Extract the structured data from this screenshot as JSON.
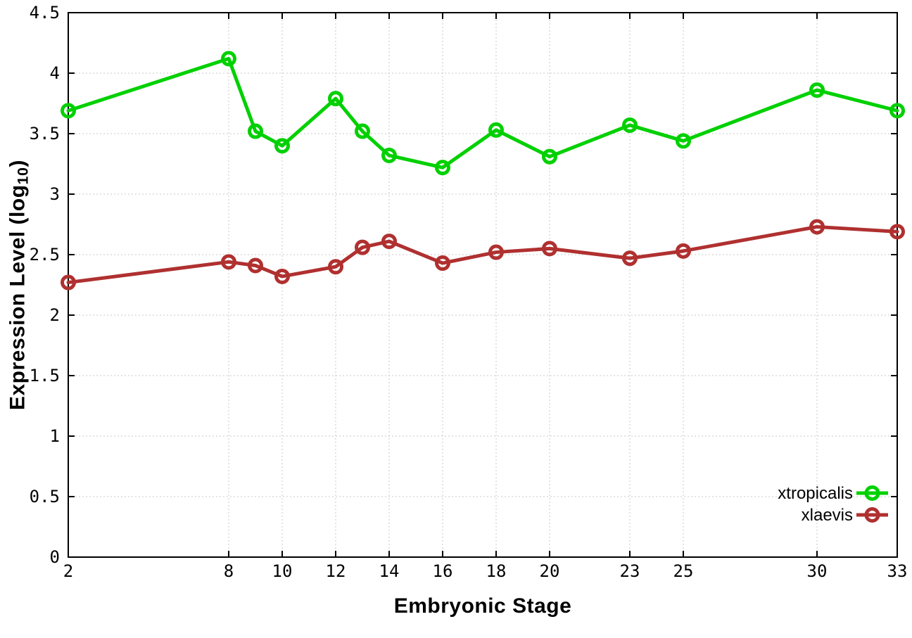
{
  "chart_data": {
    "type": "line",
    "title": "",
    "xlabel": "Embryonic Stage",
    "ylabel": "Expression Level (log10)",
    "ylabel_parts": {
      "pre": "Expression Level (log",
      "sub": "10",
      "post": ")"
    },
    "x": [
      2,
      8,
      9,
      10,
      12,
      13,
      14,
      16,
      18,
      20,
      23,
      25,
      30,
      33
    ],
    "series": [
      {
        "name": "xtropicalis",
        "color": "#00d000",
        "values": [
          3.69,
          4.12,
          3.52,
          3.4,
          3.79,
          3.52,
          3.32,
          3.22,
          3.53,
          3.31,
          3.57,
          3.44,
          3.86,
          3.69
        ]
      },
      {
        "name": "xlaevis",
        "color": "#b03030",
        "values": [
          2.27,
          2.44,
          2.41,
          2.32,
          2.4,
          2.56,
          2.61,
          2.43,
          2.52,
          2.55,
          2.47,
          2.53,
          2.73,
          2.69
        ]
      }
    ],
    "xlim": [
      2,
      33
    ],
    "ylim": [
      0,
      4.5
    ],
    "xticks": [
      2,
      8,
      10,
      12,
      14,
      16,
      18,
      20,
      23,
      25,
      30,
      33
    ],
    "yticks": [
      0,
      0.5,
      1,
      1.5,
      2,
      2.5,
      3,
      3.5,
      4,
      4.5
    ],
    "grid": true,
    "legend_position": "bottom-right",
    "marker": "open-circle"
  },
  "colors": {
    "background": "#ffffff",
    "grid": "#c8c8c8",
    "axis": "#000000",
    "tick_text": "#000000"
  }
}
